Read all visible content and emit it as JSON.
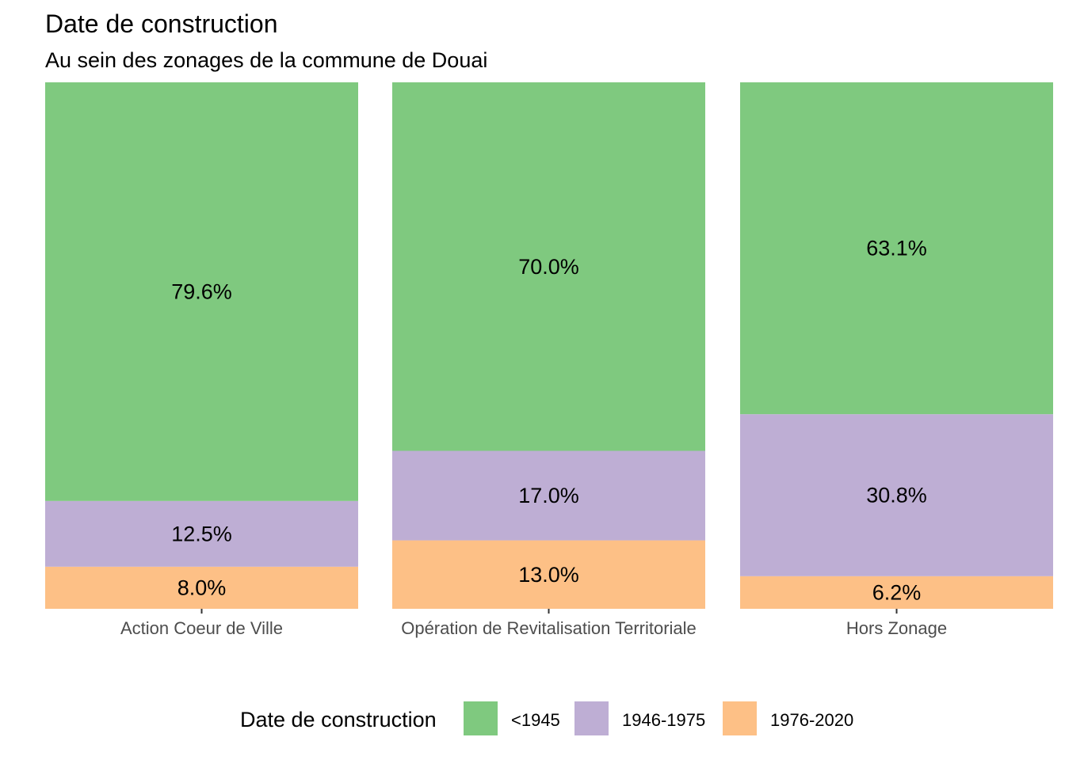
{
  "chart_data": {
    "type": "bar",
    "stacked": true,
    "normalized": true,
    "title": "Date de construction",
    "subtitle": "Au sein des zonages de la commune de Douai",
    "xlabel": "",
    "ylabel": "",
    "grid": false,
    "ylim": [
      0,
      100
    ],
    "categories": [
      "Action Coeur de Ville",
      "Opération de Revitalisation Territoriale",
      "Hors Zonage"
    ],
    "series": [
      {
        "name": "<1945",
        "color": "#7fc97f",
        "values": [
          79.6,
          70.0,
          63.1
        ],
        "labels": [
          "79.6%",
          "70.0%",
          "63.1%"
        ]
      },
      {
        "name": "1946-1975",
        "color": "#beaed4",
        "values": [
          12.5,
          17.0,
          30.8
        ],
        "labels": [
          "12.5%",
          "17.0%",
          "30.8%"
        ]
      },
      {
        "name": "1976-2020",
        "color": "#fdc086",
        "values": [
          8.0,
          13.0,
          6.2
        ],
        "labels": [
          "8.0%",
          "13.0%",
          "6.2%"
        ]
      }
    ],
    "legend": {
      "title": "Date de construction",
      "position": "bottom"
    }
  }
}
